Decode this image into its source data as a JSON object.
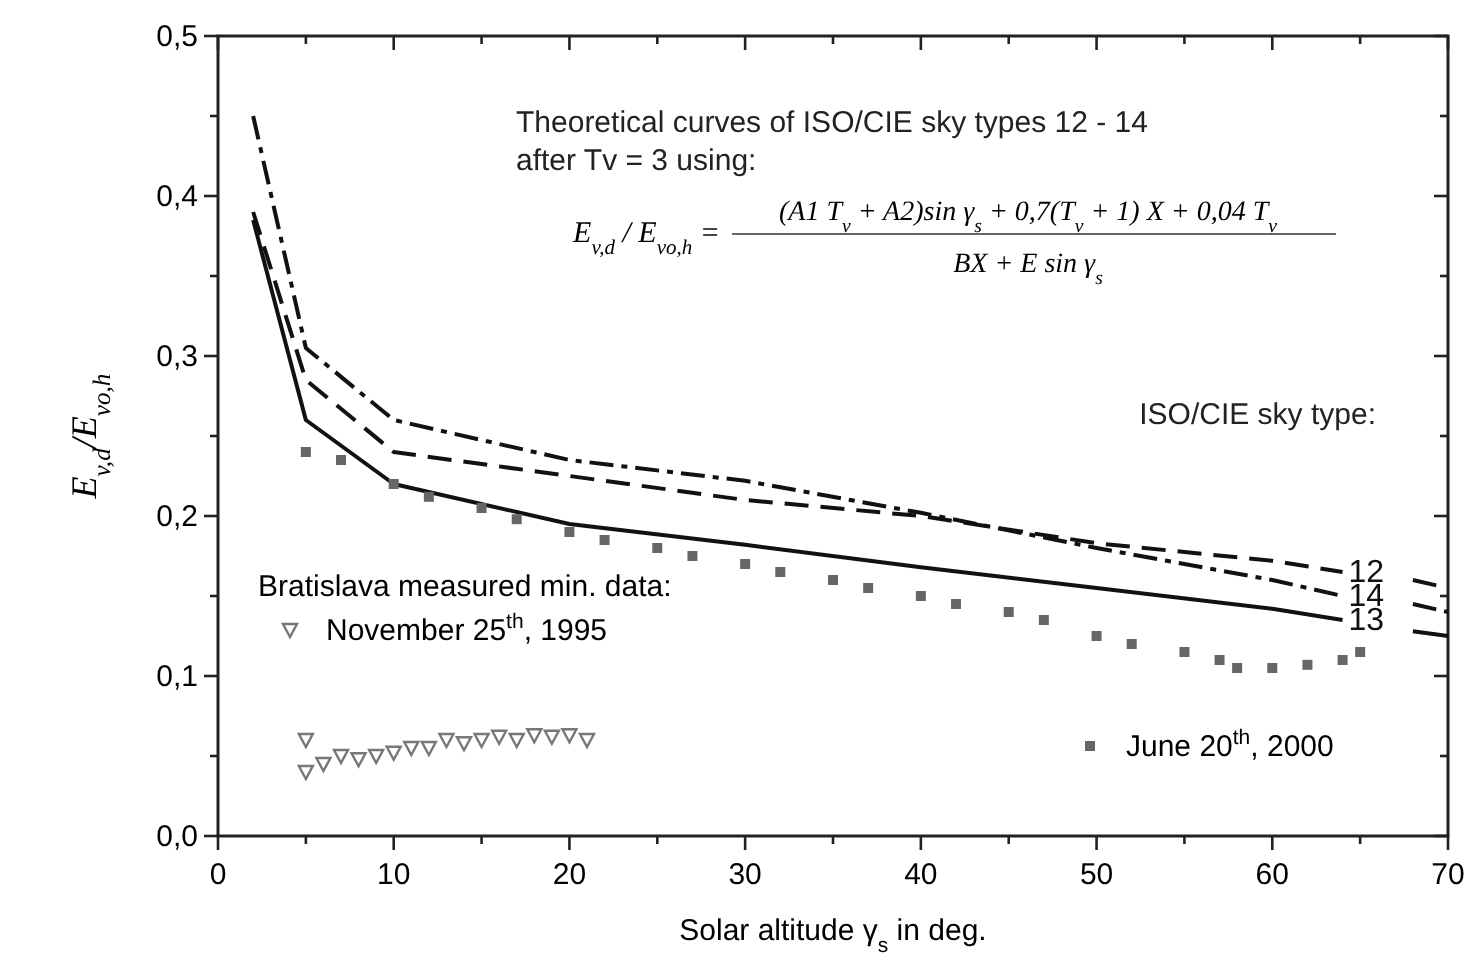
{
  "chart_data": {
    "type": "line",
    "xlabel": "Solar altitude γ$_{s}$ in deg.",
    "ylabel": "E$_{v,d}$/E$_{vo,h}$",
    "xlim": [
      0,
      70
    ],
    "xticks": [
      0,
      {
        "value": 5,
        "label": null
      },
      10,
      {
        "value": 15,
        "label": null
      },
      20,
      {
        "value": 25,
        "label": null
      },
      30,
      {
        "value": 35,
        "label": null
      },
      40,
      {
        "value": 45,
        "label": null
      },
      50,
      {
        "value": 55,
        "label": null
      },
      60,
      {
        "value": 65,
        "label": null
      },
      70
    ],
    "ylim": [
      0,
      0.5
    ],
    "yticks": [
      {
        "value": 0,
        "label": "0,0"
      },
      {
        "value": 0.05,
        "label": null
      },
      {
        "value": 0.1,
        "label": "0,1"
      },
      {
        "value": 0.15,
        "label": null
      },
      {
        "value": 0.2,
        "label": "0,2"
      },
      {
        "value": 0.25,
        "label": null
      },
      {
        "value": 0.3,
        "label": "0,3"
      },
      {
        "value": 0.35,
        "label": null
      },
      {
        "value": 0.4,
        "label": "0,4"
      },
      {
        "value": 0.45,
        "label": null
      },
      {
        "value": 0.5,
        "label": "0,5"
      }
    ],
    "grid": false,
    "legend": "bottom left",
    "legend_title": "Bratislava measured min. data:",
    "annotations": [
      "Theoretical curves of ISO/CIE sky types 12 - 14\nafter Tv = 3 using:",
      "E$_{v,d}$ / E$_{vo,h}$ =",
      "(A1 T$_{v}$ + A2)sin γ$_{s}$ + 0,7(T$_{v}$ + 1) X + 0,04 T$_{v}$",
      "BX + E sin γ$_{s}$",
      "ISO/CIE sky type:"
    ],
    "series": [
      {
        "name": "12",
        "line_style": "dashed",
        "color": "#111111",
        "x": [
          2,
          5,
          10,
          20,
          30,
          40,
          50,
          60,
          64,
          66,
          68,
          70
        ],
        "values": [
          0.39,
          0.285,
          0.24,
          0.225,
          0.21,
          0.2,
          0.183,
          0.172,
          0.165,
          null,
          0.16,
          0.155
        ]
      },
      {
        "name": "14",
        "line_style": "dashdot",
        "color": "#111111",
        "x": [
          2,
          5,
          10,
          20,
          30,
          40,
          50,
          60,
          64,
          66,
          68,
          70
        ],
        "values": [
          0.45,
          0.305,
          0.26,
          0.235,
          0.222,
          0.202,
          0.18,
          0.16,
          0.15,
          null,
          0.145,
          0.14
        ]
      },
      {
        "name": "13",
        "line_style": "solid",
        "color": "#111111",
        "x": [
          2,
          5,
          10,
          20,
          30,
          40,
          50,
          60,
          64,
          66,
          68,
          70
        ],
        "values": [
          0.385,
          0.26,
          0.22,
          0.195,
          0.182,
          0.168,
          0.155,
          0.142,
          0.135,
          null,
          0.128,
          0.125
        ]
      },
      {
        "name": "November 25$^{th}$, 1995",
        "type": "scatter",
        "marker": "triangle",
        "color": "#777777",
        "x": [
          5,
          5,
          6,
          7,
          8,
          9,
          10,
          11,
          12,
          13,
          14,
          15,
          16,
          17,
          18,
          19,
          20,
          21
        ],
        "values": [
          0.04,
          0.06,
          0.045,
          0.05,
          0.048,
          0.05,
          0.052,
          0.055,
          0.055,
          0.06,
          0.058,
          0.06,
          0.062,
          0.06,
          0.063,
          0.062,
          0.063,
          0.06
        ]
      },
      {
        "name": "June 20$^{th}$, 2000",
        "type": "scatter",
        "marker": "square",
        "color": "#666666",
        "x": [
          5,
          7,
          10,
          12,
          15,
          17,
          20,
          22,
          25,
          27,
          30,
          32,
          35,
          37,
          40,
          42,
          45,
          47,
          50,
          52,
          55,
          57,
          58,
          60,
          62,
          64,
          65
        ],
        "values": [
          0.24,
          0.235,
          0.22,
          0.212,
          0.205,
          0.198,
          0.19,
          0.185,
          0.18,
          0.175,
          0.17,
          0.165,
          0.16,
          0.155,
          0.15,
          0.145,
          0.14,
          0.135,
          0.125,
          0.12,
          0.115,
          0.11,
          0.105,
          0.105,
          0.107,
          0.11,
          0.115
        ]
      }
    ]
  }
}
